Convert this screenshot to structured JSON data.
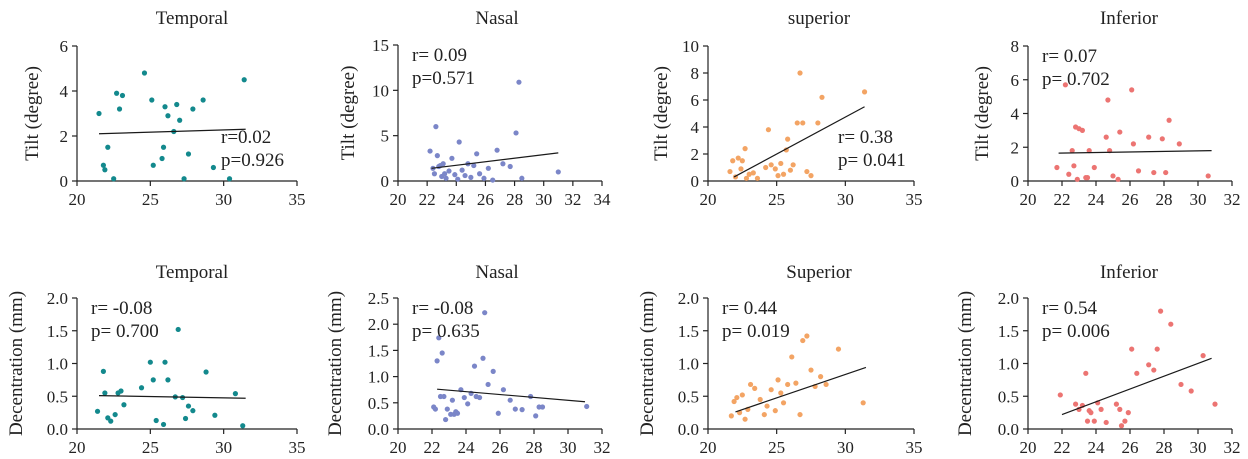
{
  "chart_data": [
    {
      "type": "scatter",
      "title": "Temporal",
      "ylabel": "Tilt (degree)",
      "xlim": [
        20,
        35
      ],
      "ylim": [
        0,
        6
      ],
      "xticks": [
        20,
        25,
        30,
        35
      ],
      "yticks": [
        0,
        2,
        4,
        6
      ],
      "color": "#13898d",
      "trend": [
        [
          21.5,
          2.1
        ],
        [
          31.5,
          2.3
        ]
      ],
      "stats": [
        "r=0.02",
        "p=0.926"
      ],
      "stats_position": "bottom-right",
      "points": [
        [
          21.5,
          3.0
        ],
        [
          21.8,
          0.7
        ],
        [
          21.9,
          0.5
        ],
        [
          22.1,
          1.5
        ],
        [
          22.5,
          0.1
        ],
        [
          22.7,
          3.9
        ],
        [
          22.9,
          3.2
        ],
        [
          23.1,
          3.8
        ],
        [
          24.6,
          4.8
        ],
        [
          25.1,
          3.6
        ],
        [
          25.2,
          0.7
        ],
        [
          25.8,
          1.0
        ],
        [
          25.9,
          1.5
        ],
        [
          26.0,
          3.3
        ],
        [
          26.2,
          2.9
        ],
        [
          26.6,
          2.2
        ],
        [
          26.8,
          3.4
        ],
        [
          27.0,
          2.7
        ],
        [
          27.3,
          0.1
        ],
        [
          27.6,
          1.2
        ],
        [
          27.9,
          3.2
        ],
        [
          28.6,
          3.6
        ],
        [
          29.3,
          0.6
        ],
        [
          30.4,
          0.1
        ],
        [
          31.4,
          4.5
        ]
      ]
    },
    {
      "type": "scatter",
      "title": "Nasal",
      "ylabel": "Tilt (degree)",
      "xlim": [
        20,
        34
      ],
      "ylim": [
        0,
        15
      ],
      "xticks": [
        20,
        22,
        24,
        26,
        28,
        30,
        32,
        34
      ],
      "yticks": [
        0,
        5,
        10,
        15
      ],
      "color": "#7b86c8",
      "trend": [
        [
          22.3,
          1.4
        ],
        [
          31.0,
          3.1
        ]
      ],
      "stats": [
        "r= 0.09",
        "p=0.571"
      ],
      "stats_position": "top-left",
      "points": [
        [
          22.2,
          3.3
        ],
        [
          22.4,
          1.4
        ],
        [
          22.5,
          0.8
        ],
        [
          22.6,
          6.0
        ],
        [
          22.7,
          2.8
        ],
        [
          22.8,
          1.6
        ],
        [
          22.9,
          1.7
        ],
        [
          23.0,
          0.5
        ],
        [
          23.1,
          1.9
        ],
        [
          23.2,
          0.8
        ],
        [
          23.3,
          0.3
        ],
        [
          23.5,
          1.1
        ],
        [
          23.7,
          2.5
        ],
        [
          23.9,
          0.7
        ],
        [
          24.1,
          0.2
        ],
        [
          24.2,
          4.3
        ],
        [
          24.4,
          1.2
        ],
        [
          24.6,
          0.6
        ],
        [
          24.8,
          1.9
        ],
        [
          25.0,
          0.4
        ],
        [
          25.2,
          1.7
        ],
        [
          25.4,
          3.0
        ],
        [
          25.6,
          0.8
        ],
        [
          25.9,
          0.3
        ],
        [
          26.2,
          1.4
        ],
        [
          26.5,
          0.1
        ],
        [
          26.8,
          3.4
        ],
        [
          27.2,
          1.9
        ],
        [
          27.7,
          1.6
        ],
        [
          28.1,
          5.3
        ],
        [
          28.3,
          10.9
        ],
        [
          28.5,
          0.3
        ],
        [
          31.0,
          1.0
        ]
      ]
    },
    {
      "type": "scatter",
      "title": "superior",
      "ylabel": "Tilt (degree)",
      "xlim": [
        20,
        35
      ],
      "ylim": [
        0,
        10
      ],
      "xticks": [
        20,
        25,
        30,
        35
      ],
      "yticks": [
        0,
        2,
        4,
        6,
        8,
        10
      ],
      "color": "#f3a464",
      "trend": [
        [
          21.9,
          0.3
        ],
        [
          31.4,
          5.5
        ]
      ],
      "stats": [
        "r= 0.38",
        "p= 0.041"
      ],
      "stats_position": "bottom-right",
      "points": [
        [
          21.6,
          0.7
        ],
        [
          21.8,
          1.5
        ],
        [
          22.0,
          0.3
        ],
        [
          22.2,
          1.7
        ],
        [
          22.4,
          0.9
        ],
        [
          22.5,
          1.5
        ],
        [
          22.7,
          2.4
        ],
        [
          22.8,
          0.2
        ],
        [
          23.0,
          0.5
        ],
        [
          23.3,
          0.6
        ],
        [
          23.6,
          0.2
        ],
        [
          24.2,
          1.0
        ],
        [
          24.4,
          3.8
        ],
        [
          24.6,
          1.2
        ],
        [
          24.9,
          0.9
        ],
        [
          25.1,
          0.4
        ],
        [
          25.3,
          1.3
        ],
        [
          25.5,
          0.5
        ],
        [
          25.7,
          2.3
        ],
        [
          25.8,
          3.1
        ],
        [
          26.0,
          0.8
        ],
        [
          26.2,
          1.2
        ],
        [
          26.5,
          4.3
        ],
        [
          26.7,
          8.0
        ],
        [
          26.9,
          4.3
        ],
        [
          27.2,
          0.7
        ],
        [
          27.5,
          0.4
        ],
        [
          28.0,
          4.3
        ],
        [
          28.3,
          6.2
        ],
        [
          31.4,
          6.6
        ]
      ]
    },
    {
      "type": "scatter",
      "title": "Inferior",
      "ylabel": "Tilt (degree)",
      "xlim": [
        20,
        32
      ],
      "ylim": [
        0,
        8
      ],
      "xticks": [
        20,
        22,
        24,
        26,
        28,
        30,
        32
      ],
      "yticks": [
        0,
        2,
        4,
        6,
        8
      ],
      "color": "#ec7472",
      "trend": [
        [
          21.8,
          1.65
        ],
        [
          30.8,
          1.8
        ]
      ],
      "stats": [
        "r= 0.07",
        "p= 0.702"
      ],
      "stats_position": "top-left",
      "points": [
        [
          21.7,
          0.8
        ],
        [
          22.2,
          5.7
        ],
        [
          22.4,
          0.4
        ],
        [
          22.6,
          1.8
        ],
        [
          22.7,
          0.9
        ],
        [
          22.8,
          3.2
        ],
        [
          22.9,
          0.1
        ],
        [
          23.0,
          3.1
        ],
        [
          23.2,
          3.0
        ],
        [
          23.4,
          0.2
        ],
        [
          23.5,
          0.2
        ],
        [
          23.6,
          1.8
        ],
        [
          23.9,
          0.8
        ],
        [
          24.6,
          2.6
        ],
        [
          24.7,
          4.8
        ],
        [
          24.8,
          1.8
        ],
        [
          25.0,
          0.3
        ],
        [
          25.3,
          0.1
        ],
        [
          25.4,
          2.9
        ],
        [
          26.1,
          5.4
        ],
        [
          26.2,
          2.2
        ],
        [
          26.5,
          0.6
        ],
        [
          27.1,
          2.6
        ],
        [
          27.4,
          0.5
        ],
        [
          27.9,
          2.5
        ],
        [
          28.1,
          0.5
        ],
        [
          28.3,
          3.6
        ],
        [
          28.9,
          2.2
        ],
        [
          30.6,
          0.3
        ]
      ]
    },
    {
      "type": "scatter",
      "title": "Temporal",
      "ylabel": "Decentration (mm)",
      "xlim": [
        20,
        35
      ],
      "ylim": [
        0,
        2.0
      ],
      "xticks": [
        20,
        25,
        30,
        35
      ],
      "yticks": [
        "0.0",
        "0.5",
        "1.0",
        "1.5",
        "2.0"
      ],
      "color": "#13898d",
      "trend": [
        [
          21.5,
          0.51
        ],
        [
          31.5,
          0.47
        ]
      ],
      "stats": [
        "r= -0.08",
        "p= 0.700"
      ],
      "stats_position": "top-left",
      "points": [
        [
          21.4,
          0.27
        ],
        [
          21.8,
          0.88
        ],
        [
          21.9,
          0.55
        ],
        [
          22.1,
          0.17
        ],
        [
          22.3,
          0.12
        ],
        [
          22.6,
          0.22
        ],
        [
          22.8,
          0.55
        ],
        [
          23.0,
          0.58
        ],
        [
          23.2,
          0.37
        ],
        [
          24.4,
          0.63
        ],
        [
          25.0,
          1.02
        ],
        [
          25.2,
          0.75
        ],
        [
          25.4,
          0.13
        ],
        [
          25.9,
          0.07
        ],
        [
          26.0,
          1.02
        ],
        [
          26.2,
          0.75
        ],
        [
          26.7,
          0.49
        ],
        [
          26.9,
          1.52
        ],
        [
          27.2,
          0.48
        ],
        [
          27.4,
          0.16
        ],
        [
          27.6,
          0.35
        ],
        [
          27.9,
          0.28
        ],
        [
          28.8,
          0.87
        ],
        [
          29.4,
          0.21
        ],
        [
          30.8,
          0.54
        ],
        [
          31.3,
          0.05
        ]
      ]
    },
    {
      "type": "scatter",
      "title": "Nasal",
      "ylabel": "Decentration (mm)",
      "xlim": [
        20,
        32
      ],
      "ylim": [
        0,
        2.5
      ],
      "xticks": [
        20,
        22,
        24,
        26,
        28,
        30,
        32
      ],
      "yticks": [
        "0.0",
        "0.5",
        "1.0",
        "1.5",
        "2.0",
        "2.5"
      ],
      "color": "#7b86c8",
      "trend": [
        [
          22.3,
          0.76
        ],
        [
          31.0,
          0.52
        ]
      ],
      "stats": [
        "r= -0.08",
        "p= 0.635"
      ],
      "stats_position": "top-left",
      "points": [
        [
          22.1,
          0.42
        ],
        [
          22.2,
          0.38
        ],
        [
          22.3,
          1.3
        ],
        [
          22.4,
          1.74
        ],
        [
          22.5,
          0.62
        ],
        [
          22.6,
          1.45
        ],
        [
          22.7,
          0.62
        ],
        [
          22.8,
          0.18
        ],
        [
          22.9,
          0.38
        ],
        [
          23.1,
          0.28
        ],
        [
          23.2,
          0.55
        ],
        [
          23.3,
          0.28
        ],
        [
          23.4,
          0.33
        ],
        [
          23.5,
          0.3
        ],
        [
          23.7,
          0.75
        ],
        [
          23.9,
          0.6
        ],
        [
          24.1,
          0.48
        ],
        [
          24.3,
          0.68
        ],
        [
          24.5,
          1.2
        ],
        [
          24.6,
          0.62
        ],
        [
          24.8,
          0.6
        ],
        [
          25.0,
          1.35
        ],
        [
          25.1,
          2.22
        ],
        [
          25.3,
          0.85
        ],
        [
          25.6,
          1.1
        ],
        [
          25.9,
          0.3
        ],
        [
          26.2,
          0.75
        ],
        [
          26.6,
          0.55
        ],
        [
          26.9,
          0.38
        ],
        [
          27.3,
          0.37
        ],
        [
          27.8,
          0.62
        ],
        [
          28.1,
          0.25
        ],
        [
          28.3,
          0.42
        ],
        [
          28.5,
          0.42
        ],
        [
          31.1,
          0.43
        ]
      ]
    },
    {
      "type": "scatter",
      "title": "Superior",
      "ylabel": "Decentration (mm)",
      "xlim": [
        20,
        35
      ],
      "ylim": [
        0,
        2.0
      ],
      "xticks": [
        20,
        25,
        30,
        35
      ],
      "yticks": [
        "0.0",
        "0.5",
        "1.0",
        "1.5",
        "2.0"
      ],
      "color": "#f3a464",
      "trend": [
        [
          22.0,
          0.26
        ],
        [
          31.5,
          0.94
        ]
      ],
      "stats": [
        "r= 0.44",
        "p= 0.019"
      ],
      "stats_position": "top-left",
      "points": [
        [
          21.7,
          0.2
        ],
        [
          21.9,
          0.42
        ],
        [
          22.1,
          0.48
        ],
        [
          22.3,
          0.25
        ],
        [
          22.5,
          0.52
        ],
        [
          22.7,
          0.15
        ],
        [
          22.9,
          0.3
        ],
        [
          23.1,
          0.68
        ],
        [
          23.4,
          0.62
        ],
        [
          23.8,
          0.45
        ],
        [
          24.1,
          0.22
        ],
        [
          24.3,
          0.35
        ],
        [
          24.6,
          0.6
        ],
        [
          24.9,
          0.28
        ],
        [
          25.1,
          0.75
        ],
        [
          25.3,
          0.55
        ],
        [
          25.5,
          0.4
        ],
        [
          25.8,
          0.68
        ],
        [
          26.1,
          1.1
        ],
        [
          26.4,
          0.7
        ],
        [
          26.7,
          0.22
        ],
        [
          26.9,
          1.35
        ],
        [
          27.2,
          1.42
        ],
        [
          27.5,
          0.9
        ],
        [
          27.8,
          0.65
        ],
        [
          28.2,
          0.8
        ],
        [
          28.6,
          0.68
        ],
        [
          29.5,
          1.22
        ],
        [
          31.3,
          0.4
        ]
      ]
    },
    {
      "type": "scatter",
      "title": "Inferior",
      "ylabel": "Decentration (mm)",
      "xlim": [
        20,
        32
      ],
      "ylim": [
        0,
        2.0
      ],
      "xticks": [
        20,
        22,
        24,
        26,
        28,
        30,
        32
      ],
      "yticks": [
        "0.0",
        "0.5",
        "1.0",
        "1.5",
        "2.0"
      ],
      "color": "#ec7472",
      "trend": [
        [
          22.0,
          0.22
        ],
        [
          30.8,
          1.08
        ]
      ],
      "stats": [
        "r= 0.54",
        "p= 0.006"
      ],
      "stats_position": "top-left",
      "points": [
        [
          21.9,
          0.52
        ],
        [
          22.8,
          0.38
        ],
        [
          23.0,
          0.3
        ],
        [
          23.2,
          0.36
        ],
        [
          23.4,
          0.85
        ],
        [
          23.5,
          0.12
        ],
        [
          23.6,
          0.28
        ],
        [
          23.7,
          0.25
        ],
        [
          23.9,
          0.12
        ],
        [
          24.1,
          0.4
        ],
        [
          24.3,
          0.3
        ],
        [
          24.6,
          0.1
        ],
        [
          25.2,
          0.38
        ],
        [
          25.4,
          0.3
        ],
        [
          25.5,
          0.05
        ],
        [
          25.7,
          0.12
        ],
        [
          25.9,
          0.25
        ],
        [
          26.1,
          1.22
        ],
        [
          26.4,
          0.85
        ],
        [
          27.1,
          0.98
        ],
        [
          27.4,
          0.9
        ],
        [
          27.6,
          1.22
        ],
        [
          27.8,
          1.8
        ],
        [
          28.4,
          1.6
        ],
        [
          29.0,
          0.68
        ],
        [
          29.6,
          0.58
        ],
        [
          30.3,
          1.12
        ],
        [
          31.0,
          0.38
        ]
      ]
    }
  ]
}
